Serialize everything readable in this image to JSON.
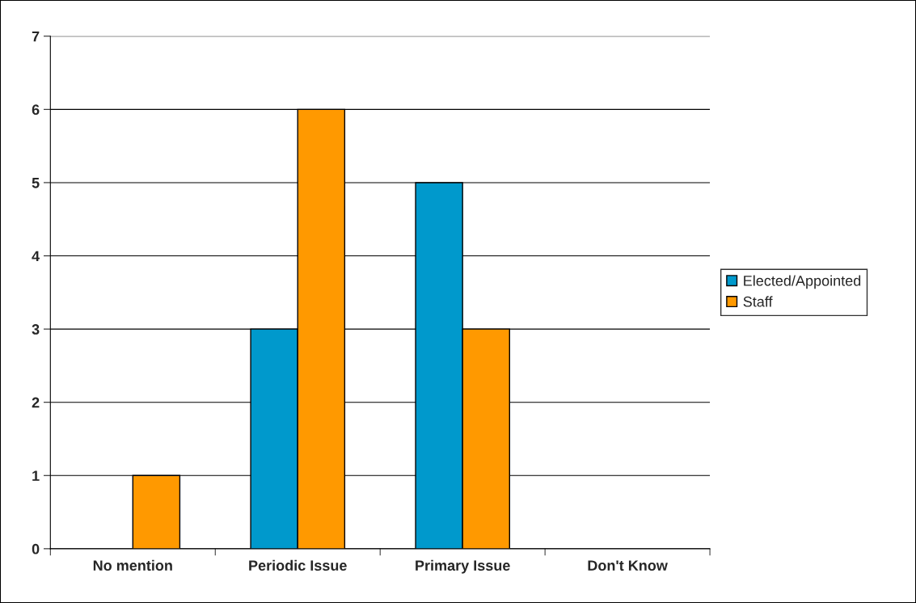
{
  "chart_data": {
    "type": "bar",
    "categories": [
      "No mention",
      "Periodic Issue",
      "Primary Issue",
      "Don't Know"
    ],
    "series": [
      {
        "name": "Elected/Appointed",
        "color": "#0099cc",
        "values": [
          0,
          3,
          5,
          0
        ]
      },
      {
        "name": "Staff",
        "color": "#ff9900",
        "values": [
          1,
          6,
          3,
          0
        ]
      }
    ],
    "ylim": [
      0,
      7
    ],
    "yticks": [
      0,
      1,
      2,
      3,
      4,
      5,
      6,
      7
    ],
    "grid": "y",
    "legend": "right"
  }
}
